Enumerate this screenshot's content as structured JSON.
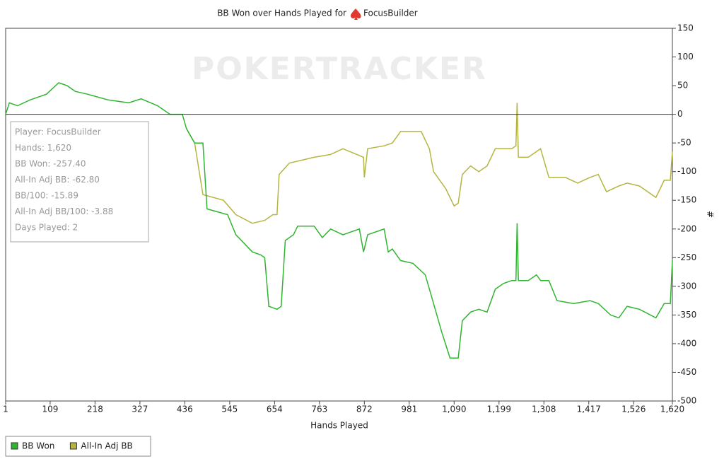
{
  "chart_data": {
    "type": "line",
    "title": "BB Won over Hands Played for",
    "title_player": "FocusBuilder",
    "watermark": "POKERTRACKER",
    "xlabel": "Hands Played",
    "ylabel": "#",
    "xlim": [
      1,
      1620
    ],
    "ylim": [
      -500,
      150
    ],
    "xticks": [
      1,
      109,
      218,
      327,
      436,
      545,
      654,
      763,
      872,
      981,
      {
        "value": 1090,
        "label": "1,090"
      },
      {
        "value": 1199,
        "label": "1,199"
      },
      {
        "value": 1308,
        "label": "1,308"
      },
      {
        "value": 1417,
        "label": "1,417"
      },
      {
        "value": 1526,
        "label": "1,526"
      },
      {
        "value": 1620,
        "label": "1,620"
      }
    ],
    "yticks": [
      150,
      100,
      50,
      0,
      -50,
      -100,
      -150,
      -200,
      -250,
      -300,
      -350,
      -400,
      -450,
      -500
    ],
    "y_axis_side": "right",
    "grid": false,
    "legend": "bottom-left",
    "annotations": [
      "Player: FocusBuilder",
      "Hands: 1,620",
      "BB Won: -257.40",
      "All-In Adj BB: -62.80",
      "BB/100: -15.89",
      "All-In Adj BB/100: -3.88",
      "Days Played: 2"
    ],
    "series": [
      {
        "name": "BB Won",
        "color": "#2fb52f",
        "x": [
          1,
          10,
          30,
          60,
          100,
          130,
          150,
          170,
          200,
          250,
          300,
          330,
          370,
          400,
          430,
          440,
          460,
          480,
          490,
          540,
          560,
          600,
          620,
          630,
          640,
          660,
          670,
          680,
          700,
          710,
          750,
          770,
          790,
          820,
          860,
          870,
          880,
          920,
          930,
          940,
          960,
          990,
          1020,
          1040,
          1060,
          1080,
          1100,
          1110,
          1130,
          1150,
          1170,
          1190,
          1210,
          1230,
          1240,
          1243,
          1246,
          1270,
          1290,
          1300,
          1320,
          1340,
          1380,
          1420,
          1440,
          1470,
          1490,
          1510,
          1540,
          1580,
          1600,
          1615,
          1620
        ],
        "values": [
          0,
          20,
          15,
          25,
          35,
          55,
          50,
          40,
          35,
          25,
          20,
          27,
          15,
          0,
          0,
          -25,
          -50,
          -50,
          -165,
          -175,
          -210,
          -240,
          -245,
          -250,
          -335,
          -340,
          -335,
          -220,
          -210,
          -195,
          -195,
          -215,
          -200,
          -210,
          -200,
          -240,
          -210,
          -200,
          -240,
          -235,
          -255,
          -260,
          -280,
          -330,
          -380,
          -425,
          -425,
          -360,
          -345,
          -340,
          -345,
          -305,
          -295,
          -290,
          -290,
          -190,
          -290,
          -290,
          -280,
          -290,
          -290,
          -325,
          -330,
          -325,
          -330,
          -350,
          -355,
          -335,
          -340,
          -355,
          -330,
          -330,
          -255
        ]
      },
      {
        "name": "All-In Adj BB",
        "color": "#b5b542",
        "x": [
          440,
          460,
          480,
          530,
          560,
          600,
          630,
          650,
          660,
          665,
          690,
          720,
          750,
          790,
          820,
          870,
          872,
          880,
          920,
          940,
          960,
          1010,
          1030,
          1040,
          1070,
          1090,
          1100,
          1110,
          1130,
          1150,
          1170,
          1190,
          1210,
          1230,
          1240,
          1243,
          1246,
          1270,
          1300,
          1320,
          1360,
          1390,
          1420,
          1440,
          1460,
          1490,
          1510,
          1540,
          1580,
          1600,
          1615,
          1620
        ],
        "values": [
          -25,
          -50,
          -140,
          -150,
          -175,
          -190,
          -185,
          -175,
          -175,
          -105,
          -85,
          -80,
          -75,
          -70,
          -60,
          -75,
          -110,
          -60,
          -55,
          -50,
          -30,
          -30,
          -60,
          -100,
          -130,
          -160,
          -155,
          -105,
          -90,
          -100,
          -90,
          -60,
          -60,
          -60,
          -55,
          20,
          -75,
          -75,
          -60,
          -110,
          -110,
          -120,
          -110,
          -105,
          -135,
          -125,
          -120,
          -125,
          -145,
          -115,
          -115,
          -65
        ]
      }
    ]
  }
}
